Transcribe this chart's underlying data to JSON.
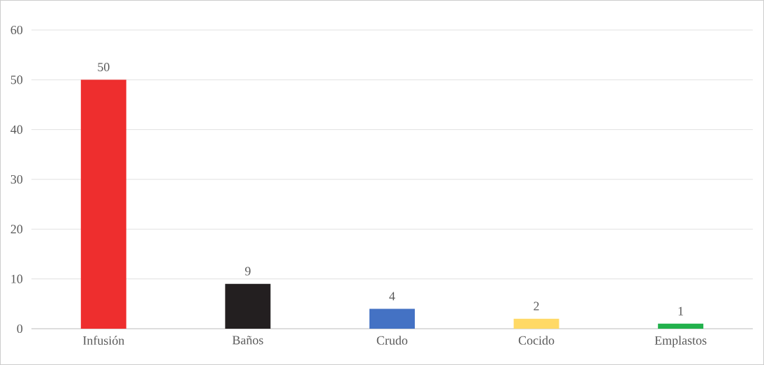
{
  "chart_data": {
    "type": "bar",
    "categories": [
      "Infusión",
      "Baños",
      "Crudo",
      "Cocido",
      "Emplastos"
    ],
    "values": [
      50,
      9,
      4,
      2,
      1
    ],
    "colors": [
      "#ee2e2e",
      "#231f20",
      "#4472c4",
      "#ffd966",
      "#22b14c"
    ],
    "ylim": [
      0,
      60
    ],
    "yticks": [
      0,
      10,
      20,
      30,
      40,
      50,
      60
    ],
    "grid": "y",
    "data_labels": true
  }
}
